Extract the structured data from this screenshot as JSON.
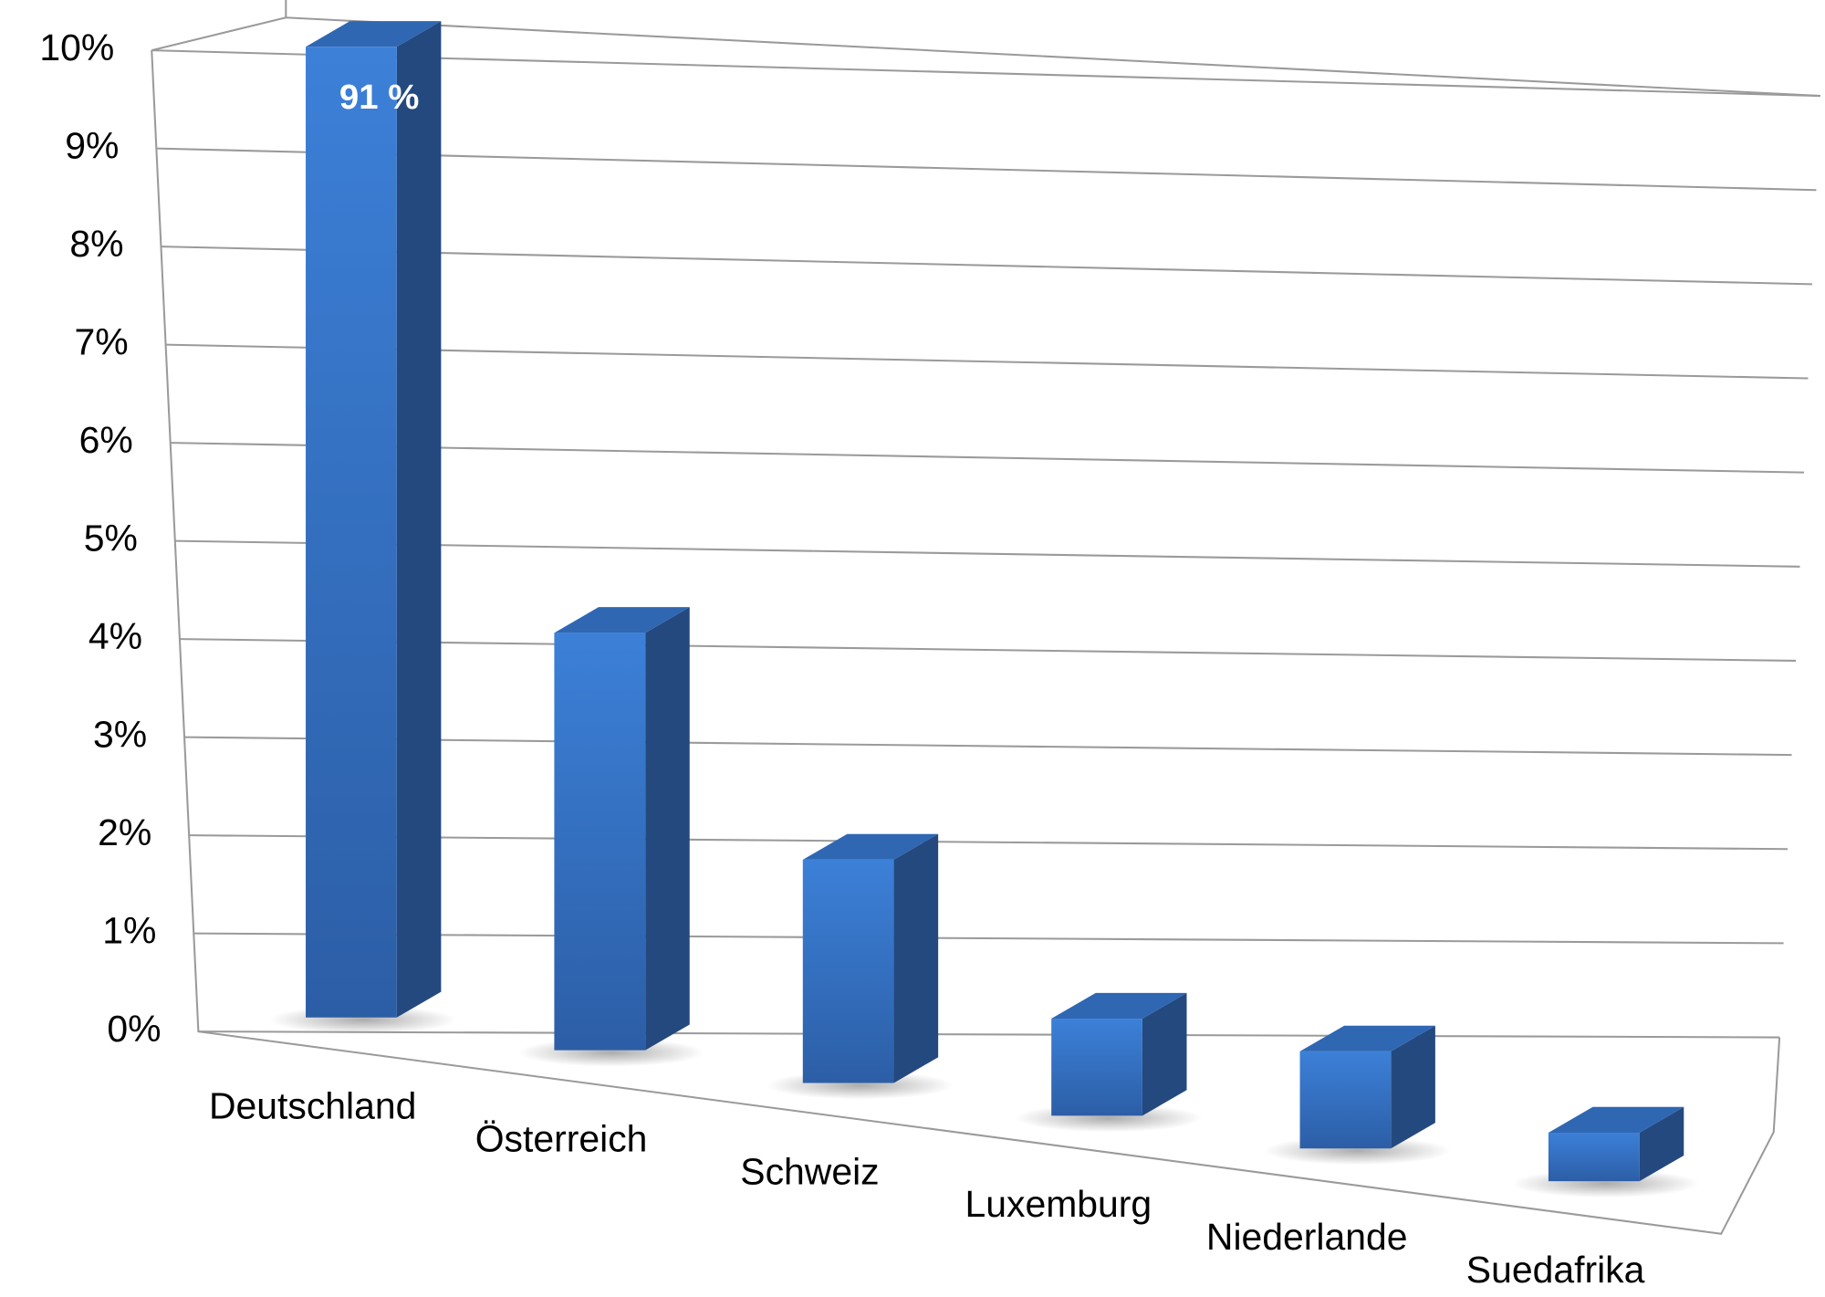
{
  "chart_data": {
    "type": "bar3d",
    "categories": [
      "Deutschland",
      "Österreich",
      "Schweiz",
      "Luxemburg",
      "Niederlande",
      "Suedafrika"
    ],
    "values": [
      91,
      4.3,
      2.3,
      1.0,
      1.0,
      0.5
    ],
    "value_labels": [
      "91 %",
      null,
      null,
      null,
      null,
      null
    ],
    "color": "#3a7bd5",
    "ylim": [
      0,
      10
    ],
    "yticks": [
      {
        "value": 0,
        "label": "0%"
      },
      {
        "value": 1,
        "label": "1%"
      },
      {
        "value": 2,
        "label": "2%"
      },
      {
        "value": 3,
        "label": "3%"
      },
      {
        "value": 4,
        "label": "4%"
      },
      {
        "value": 5,
        "label": "5%"
      },
      {
        "value": 6,
        "label": "6%"
      },
      {
        "value": 7,
        "label": "7%"
      },
      {
        "value": 8,
        "label": "8%"
      },
      {
        "value": 9,
        "label": "9%"
      },
      {
        "value": 10,
        "label": "10%"
      }
    ],
    "grid": true
  }
}
